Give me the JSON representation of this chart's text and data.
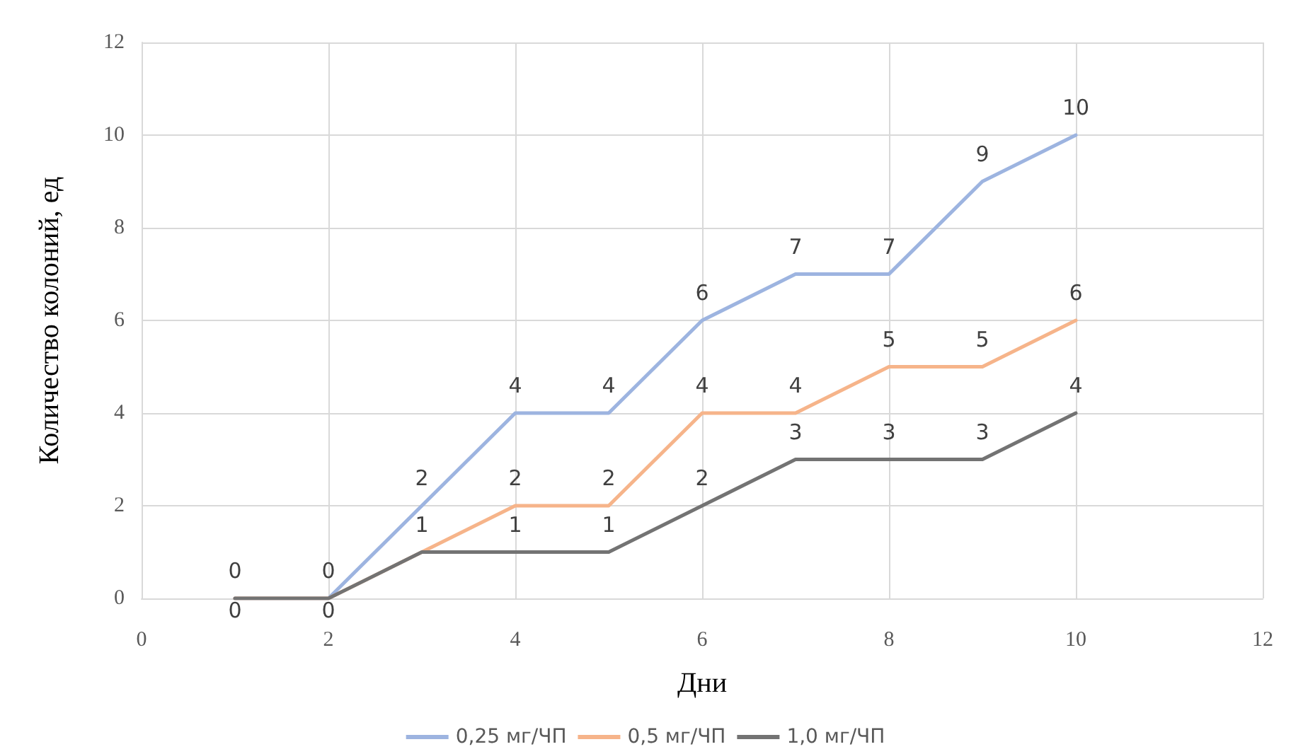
{
  "chart_data": {
    "type": "line",
    "xlabel": "Дни",
    "ylabel": "Количество колоний, ед",
    "x": [
      1,
      2,
      3,
      4,
      5,
      6,
      7,
      8,
      9,
      10
    ],
    "series": [
      {
        "name": "0,25 мг/ЧП",
        "color": "#9db4e0",
        "values": [
          0,
          0,
          2,
          4,
          4,
          6,
          7,
          7,
          9,
          10
        ],
        "value_labels": [
          "0",
          "0",
          "2",
          "4",
          "4",
          "6",
          "7",
          "7",
          "9",
          "10"
        ]
      },
      {
        "name": "0,5 мг/ЧП",
        "color": "#f6b48a",
        "values": [
          0,
          0,
          1,
          2,
          2,
          4,
          4,
          5,
          5,
          6
        ],
        "value_labels": [
          null,
          null,
          "1",
          "2",
          "2",
          "4",
          "4",
          "5",
          "5",
          "6"
        ]
      },
      {
        "name": "1,0 мг/ЧП",
        "color": "#737373",
        "values": [
          0,
          0,
          1,
          1,
          1,
          2,
          3,
          3,
          3,
          4
        ],
        "value_labels": [
          "0",
          "0",
          null,
          "1",
          "1",
          "2",
          "3",
          "3",
          "3",
          "4"
        ]
      }
    ],
    "xlim": [
      0,
      12
    ],
    "xticks": [
      0,
      2,
      4,
      6,
      8,
      10,
      12
    ],
    "ylim": [
      0,
      12
    ],
    "yticks": [
      0,
      2,
      4,
      6,
      8,
      10,
      12
    ],
    "grid": true,
    "legend": "bottom",
    "marker": "none",
    "line_style": "solid"
  }
}
